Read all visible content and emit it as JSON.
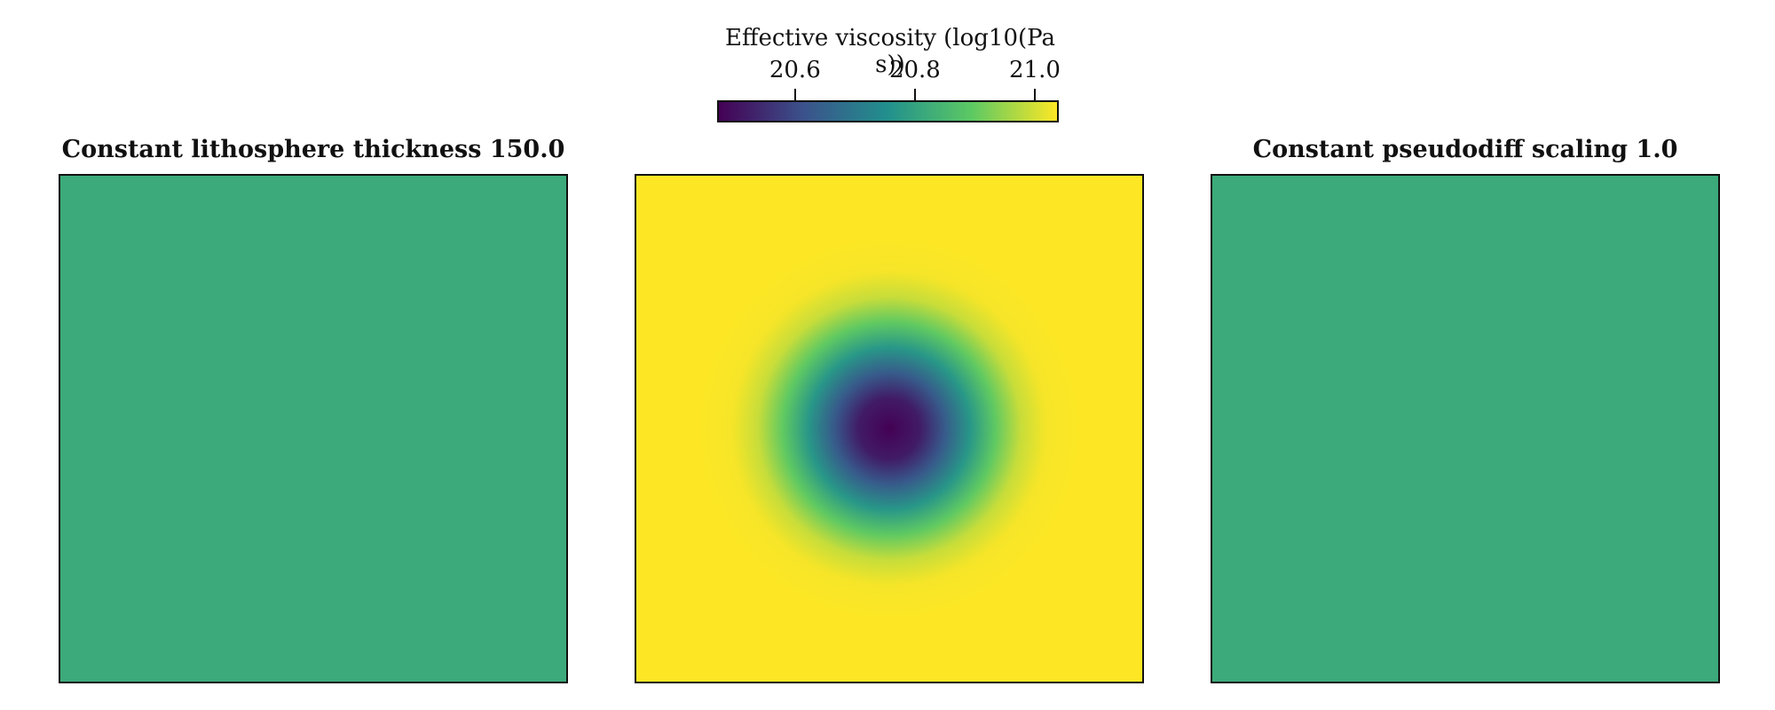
{
  "chart_data": [
    {
      "type": "heatmap",
      "title": "Constant lithosphere thickness 150.0",
      "field": "uniform",
      "value": 20.82
    },
    {
      "type": "heatmap",
      "title": "",
      "field": "radial",
      "center_value": 20.47,
      "edge_value": 21.05
    },
    {
      "type": "heatmap",
      "title": "Constant pseudodiff scaling 1.0",
      "field": "uniform",
      "value": 20.82
    }
  ],
  "colorbar": {
    "label": "Effective viscosity (log10(Pa s))",
    "colormap": "viridis",
    "range": [
      20.47,
      21.04
    ],
    "ticks": [
      20.6,
      20.8,
      21.0
    ],
    "tick_labels": [
      "20.6",
      "20.8",
      "21.0"
    ],
    "colors": [
      "#440154",
      "#3b528b",
      "#21908d",
      "#5dc963",
      "#fde725"
    ]
  }
}
